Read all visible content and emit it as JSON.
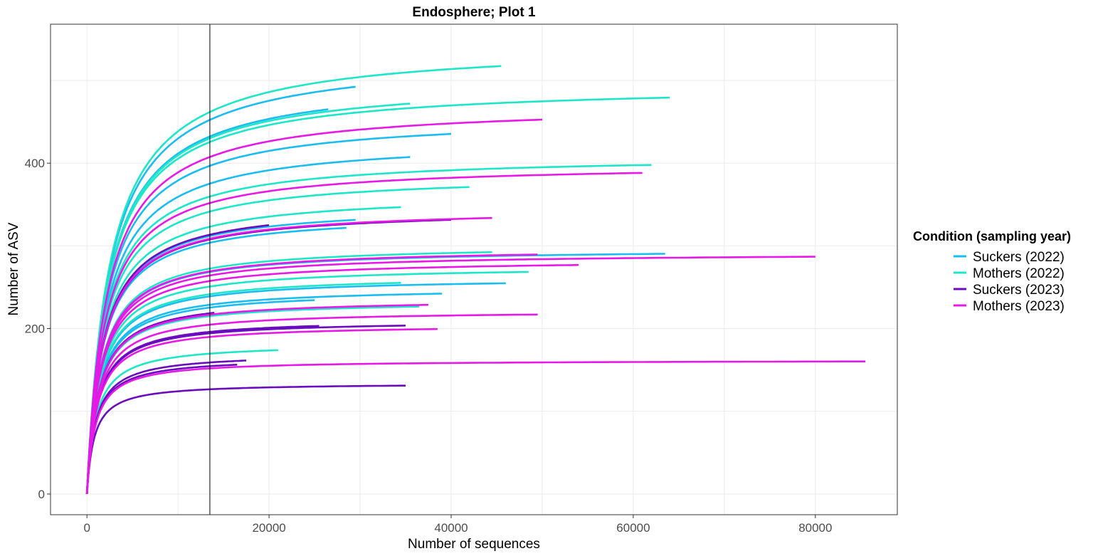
{
  "chart_data": {
    "type": "line",
    "title": "Endosphere; Plot 1",
    "xlabel": "Number of sequences",
    "ylabel": "Number of ASV",
    "xlim": [
      -4000,
      89000
    ],
    "ylim": [
      -25,
      568
    ],
    "xticks": [
      0,
      20000,
      40000,
      60000,
      80000
    ],
    "yticks": [
      0,
      200,
      400
    ],
    "xtick_labels": [
      "0",
      "20000",
      "40000",
      "60000",
      "80000"
    ],
    "ytick_labels": [
      "0",
      "200",
      "400"
    ],
    "grid": true,
    "vline_x": 13500,
    "legend": {
      "title": "Condition (sampling year)",
      "position": "right",
      "entries": [
        {
          "label": "Suckers (2022)",
          "color": "#1bbcf0"
        },
        {
          "label": "Mothers (2022)",
          "color": "#1ee6c8"
        },
        {
          "label": "Suckers (2023)",
          "color": "#6a0dbe"
        },
        {
          "label": "Mothers (2023)",
          "color": "#e619e6"
        }
      ]
    },
    "series_note": "each curve: asymptotic ASV count and total sequences (end x)",
    "series": [
      {
        "group": 0,
        "asymptote": 532,
        "end_x": 29500
      },
      {
        "group": 0,
        "asymptote": 505,
        "end_x": 26500
      },
      {
        "group": 0,
        "asymptote": 458,
        "end_x": 40000
      },
      {
        "group": 0,
        "asymptote": 430,
        "end_x": 35500
      },
      {
        "group": 0,
        "asymptote": 350,
        "end_x": 29500
      },
      {
        "group": 0,
        "asymptote": 340,
        "end_x": 28500
      },
      {
        "group": 0,
        "asymptote": 297,
        "end_x": 63500
      },
      {
        "group": 0,
        "asymptote": 262,
        "end_x": 46000
      },
      {
        "group": 0,
        "asymptote": 250,
        "end_x": 39000
      },
      {
        "group": 0,
        "asymptote": 246,
        "end_x": 25000
      },
      {
        "group": 1,
        "asymptote": 545,
        "end_x": 45500
      },
      {
        "group": 1,
        "asymptote": 502,
        "end_x": 35500
      },
      {
        "group": 1,
        "asymptote": 496,
        "end_x": 64000
      },
      {
        "group": 1,
        "asymptote": 410,
        "end_x": 62000
      },
      {
        "group": 1,
        "asymptote": 387,
        "end_x": 42000
      },
      {
        "group": 1,
        "asymptote": 364,
        "end_x": 34500
      },
      {
        "group": 1,
        "asymptote": 302,
        "end_x": 44500
      },
      {
        "group": 1,
        "asymptote": 276,
        "end_x": 48500
      },
      {
        "group": 1,
        "asymptote": 265,
        "end_x": 34500
      },
      {
        "group": 1,
        "asymptote": 234,
        "end_x": 36500
      },
      {
        "group": 1,
        "asymptote": 182,
        "end_x": 21000
      },
      {
        "group": 2,
        "asymptote": 352,
        "end_x": 20000
      },
      {
        "group": 2,
        "asymptote": 345,
        "end_x": 40000
      },
      {
        "group": 2,
        "asymptote": 238,
        "end_x": 14000
      },
      {
        "group": 2,
        "asymptote": 212,
        "end_x": 25500
      },
      {
        "group": 2,
        "asymptote": 210,
        "end_x": 35000
      },
      {
        "group": 2,
        "asymptote": 170,
        "end_x": 17500
      },
      {
        "group": 2,
        "asymptote": 165,
        "end_x": 16500
      },
      {
        "group": 2,
        "asymptote": 134,
        "end_x": 35000
      },
      {
        "group": 3,
        "asymptote": 472,
        "end_x": 50000
      },
      {
        "group": 3,
        "asymptote": 400,
        "end_x": 61000
      },
      {
        "group": 3,
        "asymptote": 346,
        "end_x": 44500
      },
      {
        "group": 3,
        "asymptote": 298,
        "end_x": 49500
      },
      {
        "group": 3,
        "asymptote": 292,
        "end_x": 80000
      },
      {
        "group": 3,
        "asymptote": 284,
        "end_x": 54000
      },
      {
        "group": 3,
        "asymptote": 236,
        "end_x": 37500
      },
      {
        "group": 3,
        "asymptote": 222,
        "end_x": 49500
      },
      {
        "group": 3,
        "asymptote": 205,
        "end_x": 38500
      },
      {
        "group": 3,
        "asymptote": 162,
        "end_x": 85500
      }
    ]
  }
}
